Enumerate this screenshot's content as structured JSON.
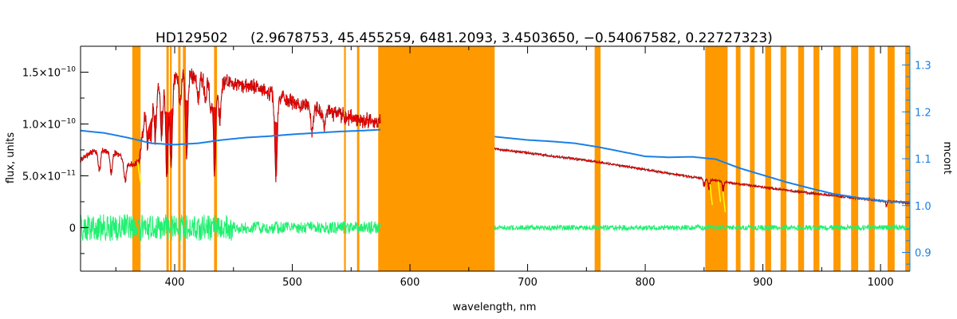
{
  "chart_data": {
    "type": "line",
    "title": "HD129502",
    "subtitle": "(2.9678753, 45.455259, 6481.2093, 3.4503650, −0.54067582, 0.22727323)",
    "xlabel": "wavelength, nm",
    "ylabel": "flux, units",
    "ylabel_right": "mcont",
    "xlim": [
      320,
      1025
    ],
    "ylim": [
      -4.2e-11,
      1.75e-10
    ],
    "ylim_right": [
      0.86,
      1.34
    ],
    "x_ticks": [
      "400",
      "500",
      "600",
      "700",
      "800",
      "900",
      "1000"
    ],
    "y_ticks": [
      {
        "value": 1.5e-10,
        "label": "1.5×10",
        "exp": "−10"
      },
      {
        "value": 1e-10,
        "label": "1.0×10",
        "exp": "−10"
      },
      {
        "value": 5e-11,
        "label": "5.0×10",
        "exp": "−11"
      },
      {
        "value": 0,
        "label": "0",
        "exp": ""
      }
    ],
    "y_right_ticks": [
      "0.9",
      "1.0",
      "1.1",
      "1.2",
      "1.3"
    ],
    "masked_regions": [
      [
        364,
        371
      ],
      [
        393,
        395
      ],
      [
        396,
        397.5
      ],
      [
        403,
        405
      ],
      [
        407,
        409.5
      ],
      [
        433.5,
        436
      ],
      [
        544,
        545.5
      ],
      [
        555,
        557
      ],
      [
        573,
        672
      ],
      [
        757,
        762
      ],
      [
        851,
        870
      ],
      [
        877,
        881
      ],
      [
        889,
        893
      ],
      [
        902,
        907
      ],
      [
        915,
        920
      ],
      [
        930,
        935
      ],
      [
        943,
        948
      ],
      [
        960,
        966
      ],
      [
        975,
        981
      ],
      [
        990,
        995
      ],
      [
        1006,
        1012
      ],
      [
        1021,
        1025
      ]
    ],
    "series": [
      {
        "name": "flux",
        "color": "#ff0000",
        "x": [
          320,
          330,
          340,
          350,
          360,
          365,
          370,
          375,
          380,
          385,
          390,
          395,
          400,
          405,
          410,
          420,
          430,
          440,
          450,
          460,
          470,
          480,
          490,
          500,
          510,
          520,
          530,
          540,
          550,
          560,
          575,
          672,
          700,
          750,
          800,
          850,
          900,
          950,
          1000,
          1025
        ],
        "y": [
          6.5e-11,
          7.3e-11,
          7.5e-11,
          7.2e-11,
          6.3e-11,
          6e-11,
          6.5e-11,
          1.12e-10,
          1.3e-10,
          1.35e-10,
          1.38e-10,
          1.36e-10,
          1.43e-10,
          1.5e-10,
          1.48e-10,
          1.45e-10,
          1.42e-10,
          1.4e-10,
          1.38e-10,
          1.37e-10,
          1.35e-10,
          1.3e-10,
          1.25e-10,
          1.22e-10,
          1.18e-10,
          1.15e-10,
          1.12e-10,
          1.09e-10,
          1.06e-10,
          1.04e-10,
          1.01e-10,
          7.6e-11,
          7.2e-11,
          6.5e-11,
          5.6e-11,
          4.7e-11,
          3.9e-11,
          3.2e-11,
          2.6e-11,
          2.4e-11
        ]
      },
      {
        "name": "mcont",
        "color": "#1a7fe6",
        "axis": "right",
        "x": [
          320,
          340,
          360,
          380,
          400,
          420,
          440,
          460,
          480,
          500,
          520,
          540,
          560,
          575,
          672,
          700,
          720,
          740,
          760,
          780,
          800,
          820,
          840,
          860,
          880,
          900,
          920,
          940,
          960,
          980,
          1000,
          1010,
          1025
        ],
        "y": [
          1.16,
          1.155,
          1.145,
          1.133,
          1.13,
          1.133,
          1.14,
          1.145,
          1.148,
          1.152,
          1.155,
          1.158,
          1.16,
          1.162,
          1.147,
          1.14,
          1.137,
          1.133,
          1.125,
          1.115,
          1.105,
          1.103,
          1.104,
          1.099,
          1.08,
          1.065,
          1.05,
          1.037,
          1.025,
          1.017,
          1.01,
          1.008,
          1.008
        ]
      },
      {
        "name": "residual",
        "color": "#20f070",
        "x": [
          320,
          575,
          672,
          1025
        ],
        "y": [
          0,
          0,
          0,
          0
        ]
      }
    ],
    "absorption_lines": [
      {
        "x": 486.1,
        "depth": 8e-11
      },
      {
        "x": 434.0,
        "depth": 9e-11
      },
      {
        "x": 410.2,
        "depth": 8e-11
      },
      {
        "x": 397.0,
        "depth": 8e-11
      },
      {
        "x": 393.4,
        "depth": 9e-11
      },
      {
        "x": 388.9,
        "depth": 5e-11
      },
      {
        "x": 383.5,
        "depth": 5e-11
      },
      {
        "x": 379.8,
        "depth": 4.5e-11
      },
      {
        "x": 377.1,
        "depth": 4e-11
      },
      {
        "x": 527.0,
        "depth": 2e-11
      },
      {
        "x": 516.9,
        "depth": 2.5e-11
      },
      {
        "x": 438.4,
        "depth": 4e-11
      },
      {
        "x": 430.8,
        "depth": 3e-11
      },
      {
        "x": 426.1,
        "depth": 2e-11
      },
      {
        "x": 404.6,
        "depth": 3e-11
      },
      {
        "x": 420.0,
        "depth": 2e-11
      },
      {
        "x": 336.0,
        "depth": 2e-11
      },
      {
        "x": 346.0,
        "depth": 2e-11
      },
      {
        "x": 358.0,
        "depth": 2e-11
      },
      {
        "x": 850.0,
        "depth": 8e-12
      },
      {
        "x": 854.2,
        "depth": 1e-11
      },
      {
        "x": 866.2,
        "depth": 1e-11
      },
      {
        "x": 1005.0,
        "depth": 5e-12
      }
    ],
    "colors": {
      "mask": "#ff9900",
      "flux_fill": "#ff0000",
      "observed": "#000000",
      "residual": "#20f070",
      "mcont": "#1a7fe6",
      "highlight": "#ffff00",
      "right_axis": "#1a7fe6"
    }
  }
}
